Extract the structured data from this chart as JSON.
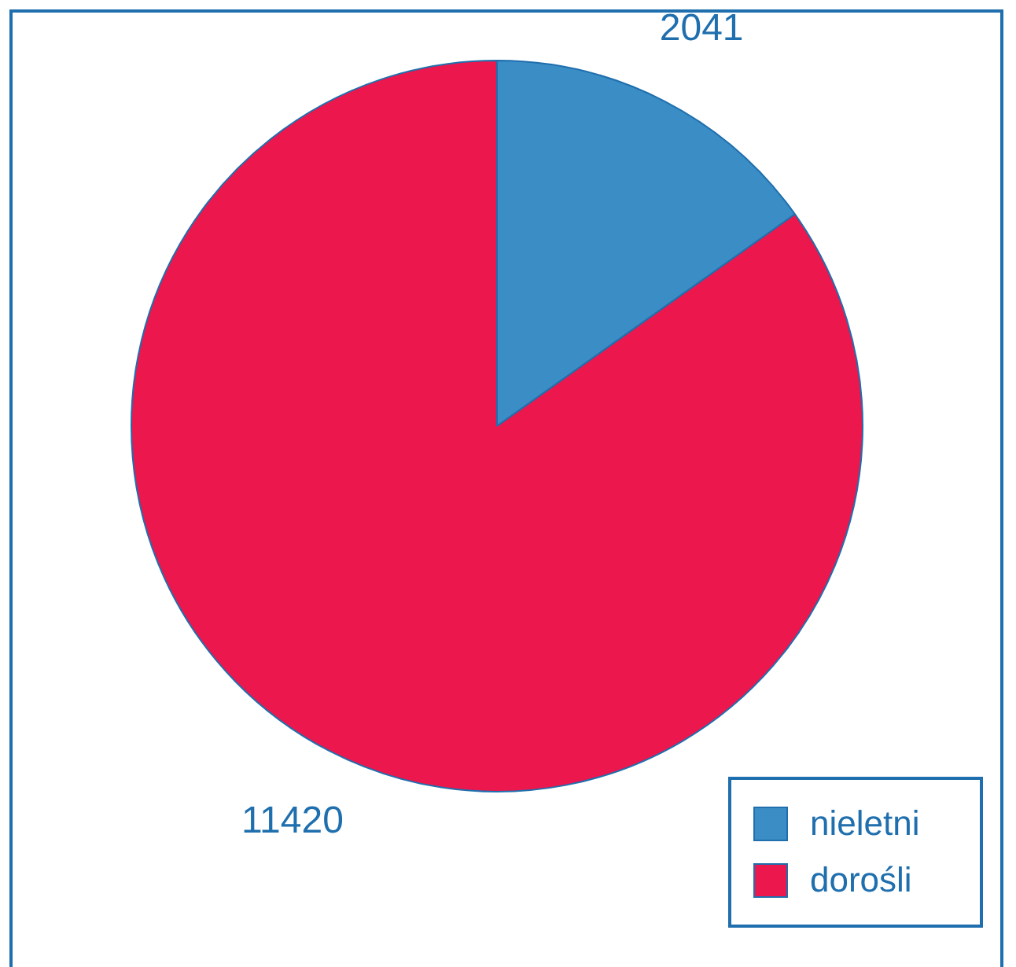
{
  "chart_data": {
    "type": "pie",
    "categories": [
      "nieletni",
      "dorośli"
    ],
    "values": [
      2041,
      11420
    ],
    "colors": [
      "#3a8dc5",
      "#ec174c"
    ],
    "data_labels": true,
    "legend": "bottom right"
  }
}
